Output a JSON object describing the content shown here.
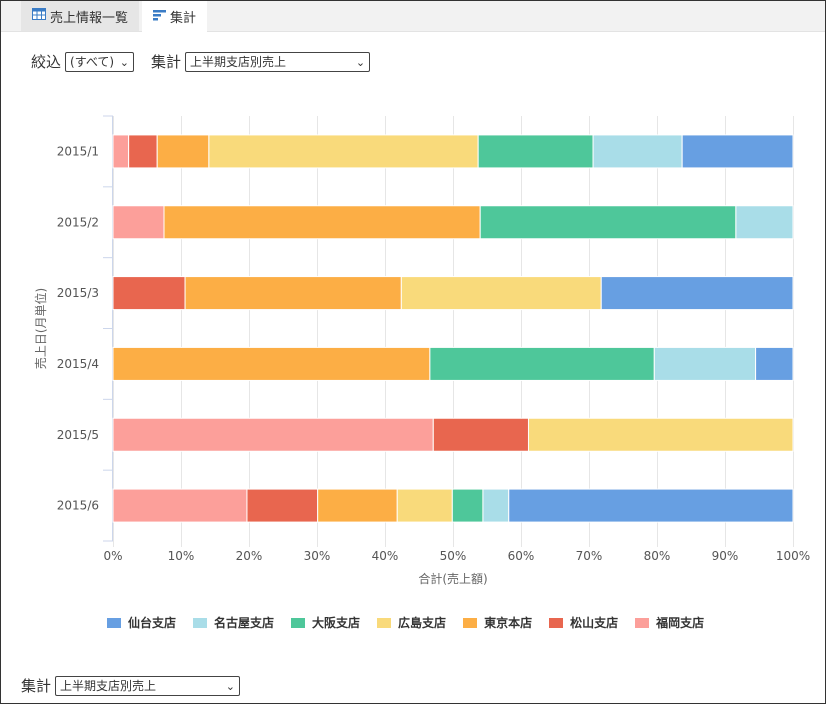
{
  "tabs": [
    {
      "label": "売上情報一覧",
      "icon": "table-icon"
    },
    {
      "label": "集計",
      "icon": "bar-chart-icon"
    }
  ],
  "filters": {
    "narrow_label": "絞込",
    "narrow_value": "(すべて)",
    "aggregate_label": "集計",
    "aggregate_value": "上半期支店別売上"
  },
  "bottom": {
    "aggregate_label": "集計",
    "aggregate_value": "上半期支店別売上"
  },
  "chart_data": {
    "type": "bar",
    "orientation": "horizontal",
    "stacked": "percent",
    "categories": [
      "2015/1",
      "2015/2",
      "2015/3",
      "2015/4",
      "2015/5",
      "2015/6"
    ],
    "xlabel": "合計(売上額)",
    "ylabel": "売上日(月単位)",
    "xticks": [
      "0%",
      "10%",
      "20%",
      "30%",
      "40%",
      "50%",
      "60%",
      "70%",
      "80%",
      "90%",
      "100%"
    ],
    "xlim": [
      0,
      100
    ],
    "grid": true,
    "legend_position": "bottom",
    "series": [
      {
        "name": "福岡支店",
        "color": "#fc9f9a",
        "values": [
          2.3,
          7.5,
          0,
          0,
          47.1,
          19.7
        ]
      },
      {
        "name": "松山支店",
        "color": "#e8664f",
        "values": [
          4.2,
          0,
          10.6,
          0,
          14.0,
          10.4
        ]
      },
      {
        "name": "東京本店",
        "color": "#fcae45",
        "values": [
          7.6,
          46.5,
          31.8,
          46.6,
          0,
          11.7
        ]
      },
      {
        "name": "広島支店",
        "color": "#f9da7b",
        "values": [
          39.6,
          0,
          29.4,
          0,
          38.9,
          8.1
        ]
      },
      {
        "name": "大阪支店",
        "color": "#4ec79a",
        "values": [
          16.9,
          37.6,
          0,
          33.0,
          0,
          4.5
        ]
      },
      {
        "name": "名古屋支店",
        "color": "#a9dde8",
        "values": [
          13.1,
          8.4,
          0,
          14.9,
          0,
          3.8
        ]
      },
      {
        "name": "仙台支店",
        "color": "#679fe2",
        "values": [
          16.3,
          0,
          28.2,
          5.5,
          0,
          41.8
        ]
      }
    ],
    "legend_order": [
      "仙台支店",
      "名古屋支店",
      "大阪支店",
      "広島支店",
      "東京本店",
      "松山支店",
      "福岡支店"
    ]
  }
}
